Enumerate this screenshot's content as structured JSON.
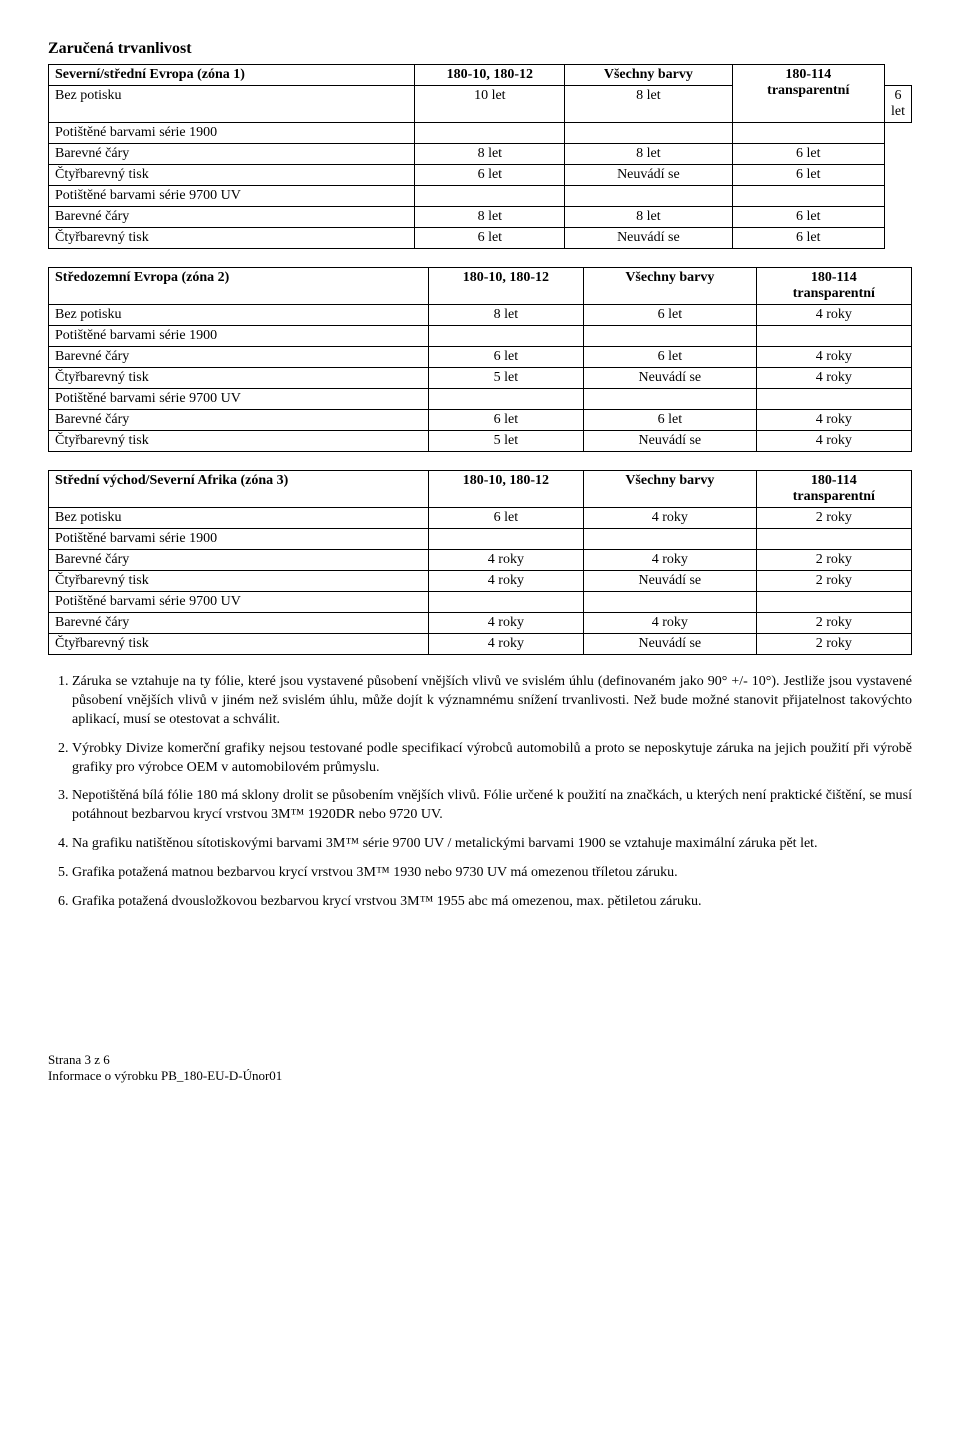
{
  "section_title": "Zaručená trvanlivost",
  "col_headers": {
    "c2": "180-10, 180-12",
    "c3": "Všechny barvy",
    "c4_line1": "180-114",
    "c4_line2": "transparentní"
  },
  "row_labels": {
    "bez_potisku": "Bez potisku",
    "serie1900": "Potištěné barvami série 1900",
    "serie9700": "Potištěné barvami série 9700 UV",
    "barevne": "Barevné čáry",
    "ctyrbar": "Čtyřbarevný tisk",
    "neuvadi": "Neuvádí se"
  },
  "tables": [
    {
      "zone_title": "Severní/střední Evropa (zóna 1)",
      "bez": [
        "10 let",
        "8 let",
        "6 let"
      ],
      "s1900_bar": [
        "8 let",
        "8 let",
        "6 let"
      ],
      "s1900_cty": [
        "6 let",
        "Neuvádí se",
        "6 let"
      ],
      "s9700_bar": [
        "8 let",
        "8 let",
        "6 let"
      ],
      "s9700_cty": [
        "6 let",
        "Neuvádí se",
        "6 let"
      ]
    },
    {
      "zone_title": "Středozemní Evropa (zóna 2)",
      "bez": [
        "8 let",
        "6 let",
        "4 roky"
      ],
      "s1900_bar": [
        "6 let",
        "6 let",
        "4 roky"
      ],
      "s1900_cty": [
        "5 let",
        "Neuvádí se",
        "4 roky"
      ],
      "s9700_bar": [
        "6 let",
        "6 let",
        "4 roky"
      ],
      "s9700_cty": [
        "5 let",
        "Neuvádí se",
        "4 roky"
      ]
    },
    {
      "zone_title": "Střední východ/Severní Afrika (zóna 3)",
      "bez": [
        "6 let",
        "4 roky",
        "2 roky"
      ],
      "s1900_bar": [
        "4 roky",
        "4 roky",
        "2 roky"
      ],
      "s1900_cty": [
        "4 roky",
        "Neuvádí se",
        "2 roky"
      ],
      "s9700_bar": [
        "4 roky",
        "4 roky",
        "2 roky"
      ],
      "s9700_cty": [
        "4 roky",
        "Neuvádí se",
        "2 roky"
      ]
    }
  ],
  "notes": [
    "Záruka se vztahuje na ty fólie, které jsou vystavené působení vnějších vlivů ve svislém úhlu (definovaném jako 90° +/- 10°). Jestliže jsou vystavené působení vnějších vlivů v jiném než svislém úhlu, může dojít k významnému snížení trvanlivosti. Než bude možné stanovit přijatelnost takovýchto aplikací, musí se otestovat a schválit.",
    "Výrobky Divize komerční grafiky nejsou testované podle specifikací výrobců automobilů a proto se neposkytuje záruka na jejich použití při výrobě grafiky pro výrobce OEM v automobilovém průmyslu.",
    "Nepotištěná bílá fólie 180 má sklony drolit se působením vnějších vlivů. Fólie určené k použití na značkách, u kterých není praktické čištění, se musí potáhnout bezbarvou krycí vrstvou 3M™ 1920DR nebo 9720 UV.",
    "Na grafiku natištěnou sítotiskovými barvami 3M™ série 9700 UV / metalickými barvami 1900 se vztahuje maximální záruka pět let.",
    "Grafika potažená matnou bezbarvou krycí vrstvou 3M™ 1930 nebo 9730 UV má omezenou tříletou záruku.",
    "Grafika potažená dvousložkovou bezbarvou krycí vrstvou 3M™ 1955 abc má omezenou, max. pětiletou záruku."
  ],
  "footer": {
    "line1": "Strana 3 z 6",
    "line2": "Informace o výrobku PB_180-EU-D-Únor01"
  }
}
